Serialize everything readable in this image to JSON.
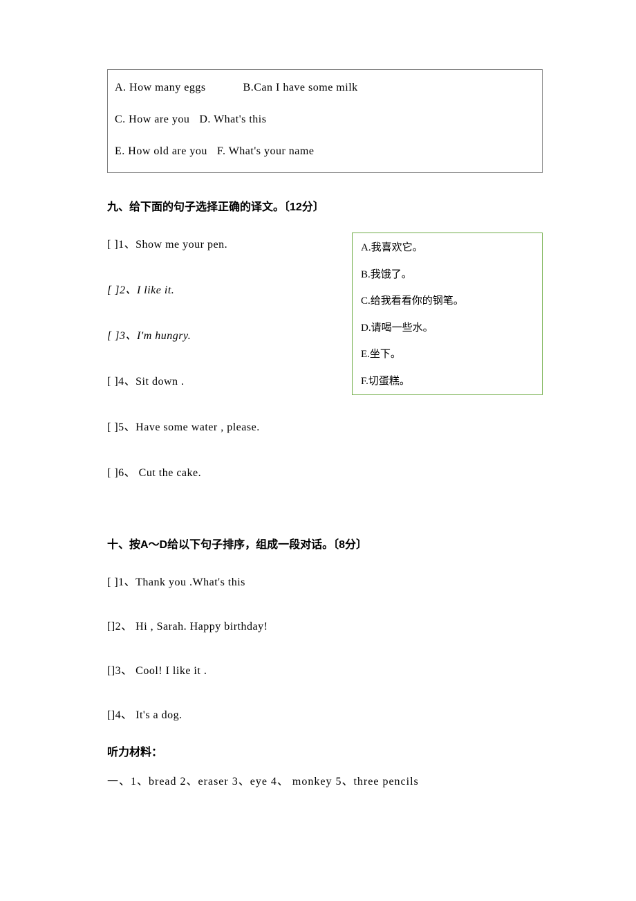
{
  "colors": {
    "page_bg": "#ffffff",
    "text": "#000000",
    "gray_border": "#808080",
    "green_border": "#6fac46"
  },
  "typography": {
    "body_font": "SimSun",
    "heading_font": "SimHei",
    "body_size_pt": 12,
    "heading_weight": "bold"
  },
  "top_box": {
    "rows": [
      {
        "a": "A. How many eggs",
        "b": "B.Can I have some milk"
      },
      {
        "a": "C. How are you",
        "b": "D. What's this"
      },
      {
        "a": "E. How old are you",
        "b": "F. What's your name"
      }
    ]
  },
  "section9": {
    "heading": "九、给下面的句子选择正确的译文。〔12分〕",
    "items": [
      {
        "bracket": "[    ]",
        "text": "1、Show me your pen.",
        "italic": false
      },
      {
        "bracket": "[    ]",
        "text": "2、I like it.",
        "italic": true
      },
      {
        "bracket": "[    ]",
        "text": "3、I'm hungry.",
        "italic": true
      },
      {
        "bracket": "[    ]",
        "text": "4、Sit down .",
        "italic": false
      },
      {
        "bracket": "[    ]",
        "text": "5、Have some water , please.",
        "italic": false
      },
      {
        "bracket": "[    ]",
        "text": "6、 Cut the cake.",
        "italic": false
      }
    ],
    "options": [
      "A.我喜欢它。",
      "B.我饿了。",
      "C.给我看看你的钢笔。",
      "D.请喝一些水。",
      "E.坐下。",
      "F.切蛋糕。"
    ]
  },
  "section10": {
    "heading": "十、按A～D给以下句子排序，组成一段对话。〔8分〕",
    "items": [
      {
        "bracket": "[    ]",
        "text": "1、Thank you .What's this"
      },
      {
        "bracket": "[]",
        "text": "2、 Hi , Sarah. Happy birthday!"
      },
      {
        "bracket": "[]",
        "text": "3、 Cool! I like it ."
      },
      {
        "bracket": "[]",
        "text": "4、 It's a dog."
      }
    ]
  },
  "listening": {
    "heading": "听力材料：",
    "line": "一、1、bread  2、eraser  3、eye  4、 monkey  5、three pencils"
  }
}
